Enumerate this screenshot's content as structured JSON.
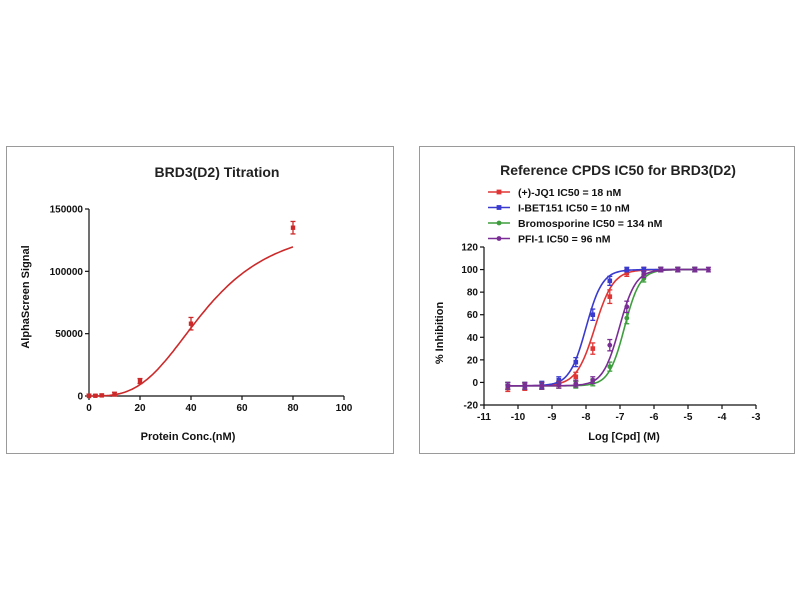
{
  "chart_data": [
    {
      "type": "scatter",
      "title": "BRD3(D2) Titration",
      "xlabel": "Protein Conc.(nM)",
      "ylabel": "AlphaScreen Signal",
      "xlim": [
        0,
        100
      ],
      "ylim": [
        0,
        150000
      ],
      "xticks": [
        "0",
        "20",
        "40",
        "60",
        "80",
        "100"
      ],
      "yticks": [
        "0",
        "50000",
        "100000",
        "150000"
      ],
      "grid": false,
      "color": "#cc2a2a",
      "series": [
        {
          "points": [
            {
              "x": 0,
              "y": 0,
              "err": 1500
            },
            {
              "x": 2.5,
              "y": 200,
              "err": 1000
            },
            {
              "x": 5,
              "y": 500,
              "err": 1000
            },
            {
              "x": 10,
              "y": 1500,
              "err": 1500
            },
            {
              "x": 20,
              "y": 12000,
              "err": 2000
            },
            {
              "x": 40,
              "y": 58000,
              "err": 5000
            },
            {
              "x": 80,
              "y": 135000,
              "err": 5000
            }
          ],
          "fit": {
            "bottom": 0,
            "top": 140000,
            "ec50": 46,
            "hill": 3.2
          }
        }
      ]
    },
    {
      "type": "scatter",
      "title": "Reference CPDS IC50 for BRD3(D2)",
      "xlabel": "Log [Cpd] (M)",
      "ylabel": "% Inhibition",
      "xlim": [
        -11,
        -3
      ],
      "ylim": [
        -20,
        120
      ],
      "xticks": [
        "-11",
        "-10",
        "-9",
        "-8",
        "-7",
        "-6",
        "-5",
        "-4",
        "-3"
      ],
      "yticks": [
        "-20",
        "0",
        "20",
        "40",
        "60",
        "80",
        "100",
        "120"
      ],
      "grid": false,
      "legend_position": "top-left",
      "series": [
        {
          "name": "(+)-JQ1 IC50 = 18 nM",
          "color": "#e03535",
          "marker": "square",
          "fit": {
            "bottom": -3,
            "top": 100,
            "logic50": -7.74,
            "hill": 1.6
          },
          "points": [
            {
              "x": -10.3,
              "y": -5,
              "err": 3
            },
            {
              "x": -9.8,
              "y": -4,
              "err": 3
            },
            {
              "x": -9.3,
              "y": -3,
              "err": 3
            },
            {
              "x": -8.8,
              "y": -2,
              "err": 3
            },
            {
              "x": -8.3,
              "y": 5,
              "err": 4
            },
            {
              "x": -7.8,
              "y": 30,
              "err": 5
            },
            {
              "x": -7.3,
              "y": 76,
              "err": 6
            },
            {
              "x": -6.8,
              "y": 97,
              "err": 3
            },
            {
              "x": -6.3,
              "y": 100,
              "err": 2
            },
            {
              "x": -5.8,
              "y": 100,
              "err": 2
            },
            {
              "x": -5.3,
              "y": 100,
              "err": 2
            },
            {
              "x": -4.8,
              "y": 100,
              "err": 2
            }
          ]
        },
        {
          "name": "I-BET151 IC50 = 10 nM",
          "color": "#3a3acf",
          "marker": "square",
          "fit": {
            "bottom": -3,
            "top": 100,
            "logic50": -8.0,
            "hill": 1.8
          },
          "points": [
            {
              "x": -10.3,
              "y": -3,
              "err": 3
            },
            {
              "x": -9.8,
              "y": -3,
              "err": 3
            },
            {
              "x": -9.3,
              "y": -2,
              "err": 3
            },
            {
              "x": -8.8,
              "y": 2,
              "err": 3
            },
            {
              "x": -8.3,
              "y": 18,
              "err": 4
            },
            {
              "x": -7.8,
              "y": 60,
              "err": 5
            },
            {
              "x": -7.3,
              "y": 90,
              "err": 4
            },
            {
              "x": -6.8,
              "y": 100,
              "err": 2
            },
            {
              "x": -6.3,
              "y": 100,
              "err": 2
            },
            {
              "x": -5.8,
              "y": 100,
              "err": 2
            },
            {
              "x": -5.3,
              "y": 100,
              "err": 2
            },
            {
              "x": -4.8,
              "y": 100,
              "err": 2
            }
          ]
        },
        {
          "name": "Bromosporine IC50 = 134 nM",
          "color": "#3e9e3e",
          "marker": "circle",
          "fit": {
            "bottom": -3,
            "top": 100,
            "logic50": -6.87,
            "hill": 1.9
          },
          "points": [
            {
              "x": -10.3,
              "y": -3,
              "err": 3
            },
            {
              "x": -9.8,
              "y": -3,
              "err": 3
            },
            {
              "x": -9.3,
              "y": -3,
              "err": 3
            },
            {
              "x": -8.8,
              "y": -2,
              "err": 3
            },
            {
              "x": -8.3,
              "y": -2,
              "err": 3
            },
            {
              "x": -7.8,
              "y": 0,
              "err": 3
            },
            {
              "x": -7.3,
              "y": 14,
              "err": 4
            },
            {
              "x": -6.8,
              "y": 57,
              "err": 5
            },
            {
              "x": -6.3,
              "y": 92,
              "err": 3
            },
            {
              "x": -5.8,
              "y": 100,
              "err": 2
            },
            {
              "x": -5.3,
              "y": 100,
              "err": 2
            },
            {
              "x": -4.8,
              "y": 100,
              "err": 2
            }
          ]
        },
        {
          "name": "PFI-1 IC50 = 96 nM",
          "color": "#7a2d95",
          "marker": "circle",
          "fit": {
            "bottom": -3,
            "top": 100,
            "logic50": -7.02,
            "hill": 1.8
          },
          "points": [
            {
              "x": -10.3,
              "y": -3,
              "err": 3
            },
            {
              "x": -9.8,
              "y": -3,
              "err": 3
            },
            {
              "x": -9.3,
              "y": -3,
              "err": 3
            },
            {
              "x": -8.8,
              "y": -2,
              "err": 3
            },
            {
              "x": -8.3,
              "y": -1,
              "err": 3
            },
            {
              "x": -7.8,
              "y": 2,
              "err": 3
            },
            {
              "x": -7.3,
              "y": 33,
              "err": 5
            },
            {
              "x": -6.8,
              "y": 67,
              "err": 5
            },
            {
              "x": -6.3,
              "y": 96,
              "err": 3
            },
            {
              "x": -5.8,
              "y": 100,
              "err": 2
            },
            {
              "x": -5.3,
              "y": 100,
              "err": 2
            },
            {
              "x": -4.8,
              "y": 100,
              "err": 2
            },
            {
              "x": -4.4,
              "y": 100,
              "err": 2
            }
          ]
        }
      ]
    }
  ]
}
